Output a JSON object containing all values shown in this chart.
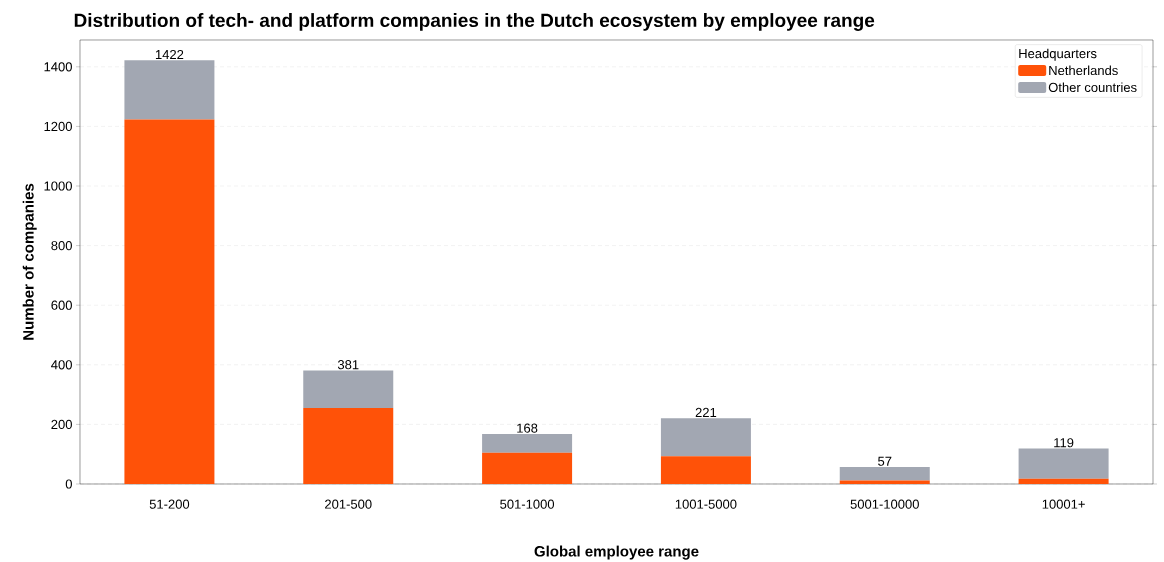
{
  "chart_data": {
    "type": "bar",
    "title": "Distribution of tech- and platform companies in the Dutch ecosystem by employee range",
    "xlabel": "Global employee range",
    "ylabel": "Number of companies",
    "legend_title": "Headquarters",
    "categories": [
      "51-200",
      "201-500",
      "501-1000",
      "1001-5000",
      "5001-10000",
      "10001+"
    ],
    "stacked": true,
    "series": [
      {
        "name": "Netherlands",
        "color": "#ff5208",
        "values": [
          1223,
          255,
          105,
          93,
          12,
          18
        ]
      },
      {
        "name": "Other countries",
        "color": "#a2a7b2",
        "values": [
          199,
          126,
          63,
          128,
          45,
          101
        ]
      }
    ],
    "totals": [
      "1422",
      "381",
      "168",
      "221",
      "57",
      "119"
    ],
    "ylim": [
      0,
      1490
    ],
    "yticks": [
      0,
      200,
      400,
      600,
      800,
      1000,
      1200,
      1400
    ],
    "grid": "y",
    "legend": "top right"
  }
}
